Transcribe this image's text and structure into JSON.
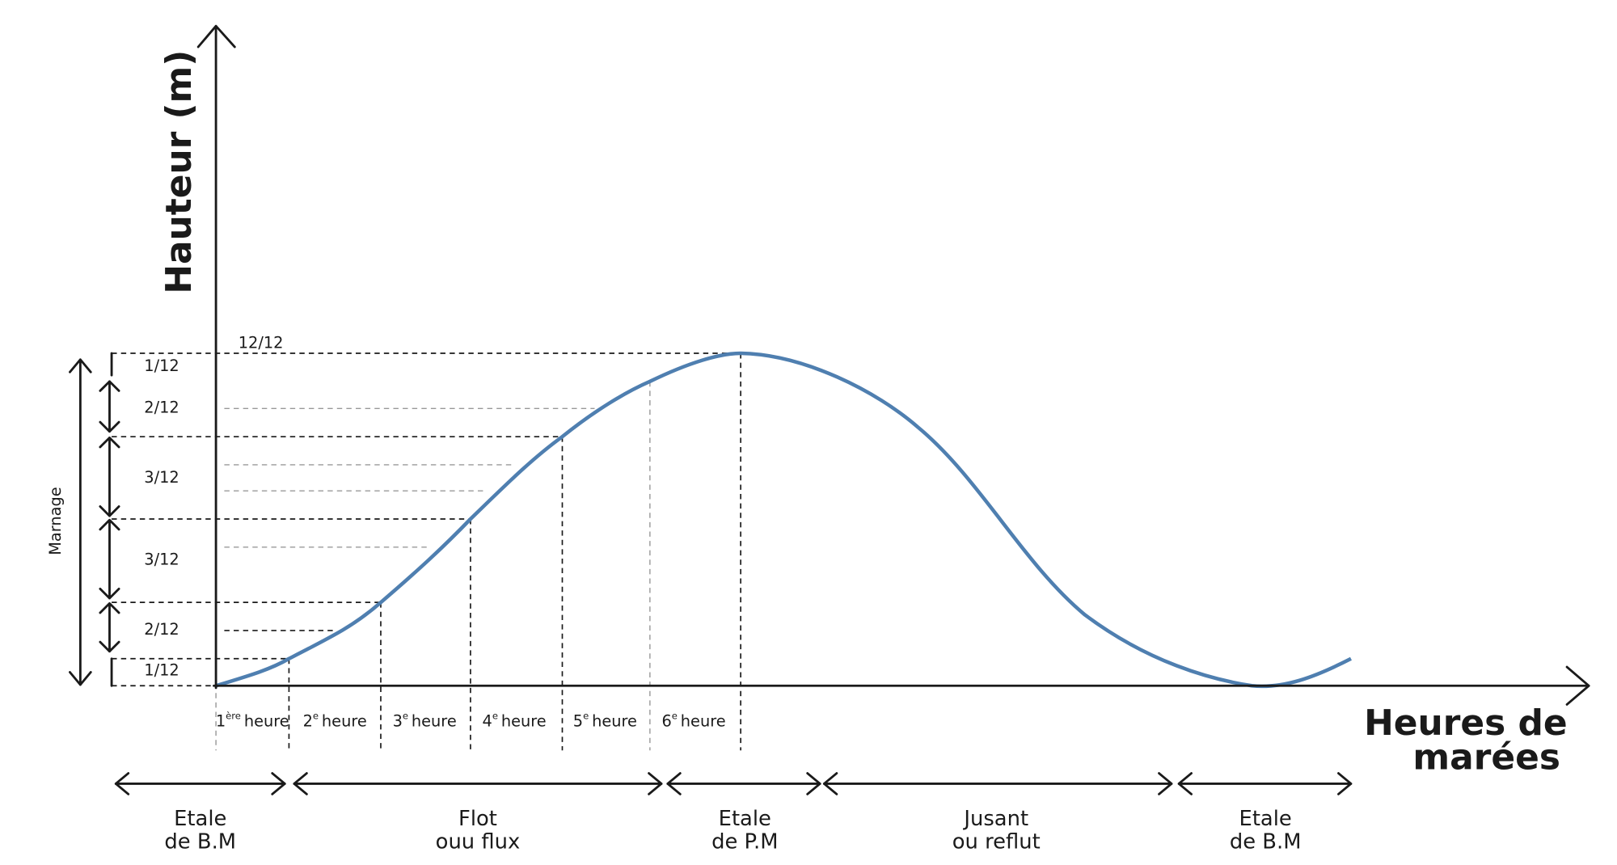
{
  "axis": {
    "y_title": "Hauteur (m)",
    "x_title_lines": [
      "Heures de",
      "marées"
    ]
  },
  "marnage": "Marnage",
  "top_label": "12/12",
  "fractions": [
    "1/12",
    "2/12",
    "3/12",
    "3/12",
    "2/12",
    "1/12"
  ],
  "hours": [
    {
      "n": "1",
      "sup": "ère",
      "word": "heure"
    },
    {
      "n": "2",
      "sup": "e",
      "word": "heure"
    },
    {
      "n": "3",
      "sup": "e",
      "word": "heure"
    },
    {
      "n": "4",
      "sup": "e",
      "word": "heure"
    },
    {
      "n": "5",
      "sup": "e",
      "word": "heure"
    },
    {
      "n": "6",
      "sup": "e",
      "word": "heure"
    }
  ],
  "phases": [
    {
      "lines": [
        "Etale",
        "de B.M"
      ]
    },
    {
      "lines": [
        "Flot",
        "ouu flux"
      ]
    },
    {
      "lines": [
        "Etale",
        "de P.M"
      ]
    },
    {
      "lines": [
        "Jusant",
        "ou reflut"
      ]
    },
    {
      "lines": [
        "Etale",
        "de B.M"
      ]
    }
  ]
}
